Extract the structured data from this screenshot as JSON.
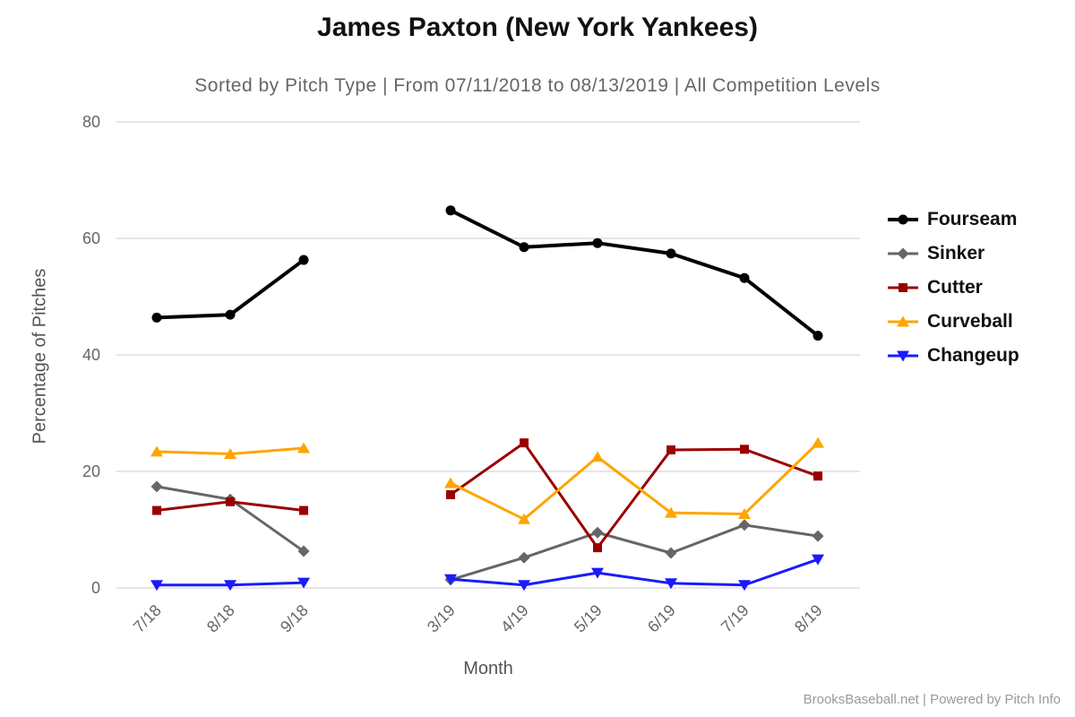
{
  "page": {
    "background": "#ffffff"
  },
  "footer": {
    "text": "BrooksBaseball.net | Powered by Pitch Info"
  },
  "chart_data": {
    "type": "line",
    "title": "James Paxton (New York Yankees)",
    "subtitle": "Sorted by Pitch Type | From 07/11/2018 to 08/13/2019 | All Competition Levels",
    "xlabel": "Month",
    "ylabel": "Percentage of Pitches",
    "ylim": [
      0,
      80
    ],
    "yticks": [
      0,
      20,
      40,
      60,
      80
    ],
    "grid": "horizontal",
    "grid_color": "#cccccc",
    "legend_position": "right",
    "categories": [
      "7/18",
      "8/18",
      "9/18",
      "3/19",
      "4/19",
      "5/19",
      "6/19",
      "7/19",
      "8/19"
    ],
    "category_slots": [
      0,
      1,
      2,
      4,
      5,
      6,
      7,
      8,
      9
    ],
    "total_slots": 10,
    "segments": [
      [
        0,
        1,
        2
      ],
      [
        3,
        4,
        5,
        6,
        7,
        8
      ]
    ],
    "series": [
      {
        "name": "Fourseam",
        "color": "#000000",
        "marker": "circle",
        "line_width": 4,
        "values": [
          46.4,
          46.9,
          56.3,
          64.8,
          58.5,
          59.2,
          57.4,
          53.2,
          43.3
        ]
      },
      {
        "name": "Sinker",
        "color": "#666666",
        "marker": "diamond",
        "line_width": 3,
        "values": [
          17.4,
          15.2,
          6.3,
          1.4,
          5.2,
          9.5,
          6.0,
          10.8,
          8.9
        ]
      },
      {
        "name": "Cutter",
        "color": "#990000",
        "marker": "square",
        "line_width": 3,
        "values": [
          13.3,
          14.8,
          13.3,
          16.0,
          24.9,
          6.9,
          23.7,
          23.8,
          19.2
        ]
      },
      {
        "name": "Curveball",
        "color": "#FFA500",
        "marker": "triangle-up",
        "line_width": 3,
        "values": [
          23.4,
          23.0,
          24.0,
          18.0,
          11.8,
          22.5,
          12.9,
          12.7,
          24.9
        ]
      },
      {
        "name": "Changeup",
        "color": "#1A1AFF",
        "marker": "triangle-down",
        "line_width": 3,
        "values": [
          0.5,
          0.5,
          0.9,
          1.5,
          0.5,
          2.6,
          0.8,
          0.5,
          4.9
        ]
      }
    ]
  }
}
